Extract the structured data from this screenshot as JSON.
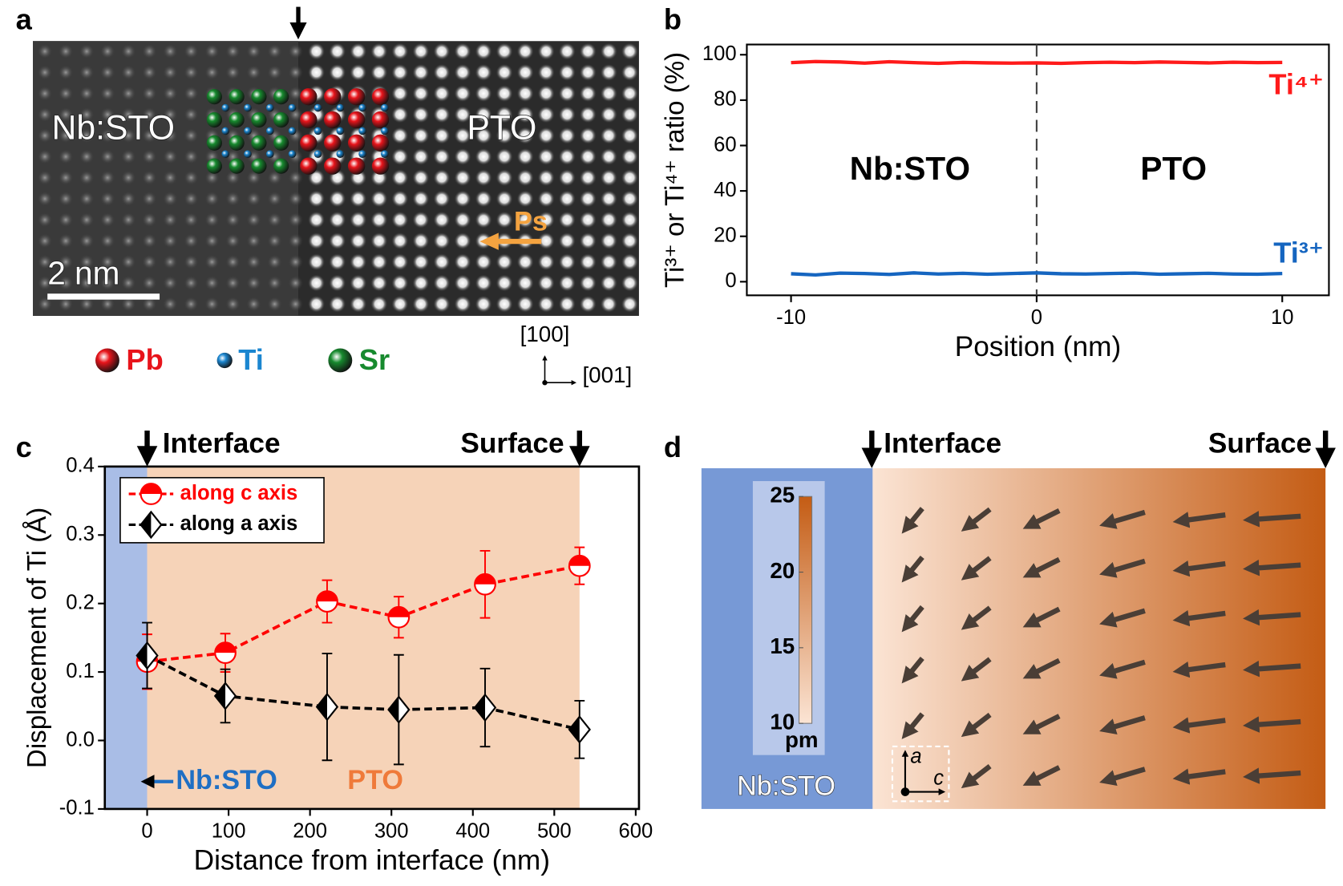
{
  "panel_labels": [
    "a",
    "b",
    "c",
    "d"
  ],
  "image": {
    "left_label": "Nb:STO",
    "right_label": "PTO",
    "polarization": "Ps",
    "scale_bar": "2 nm",
    "legend": [
      {
        "name": "Pb",
        "color": "#e8141b"
      },
      {
        "name": "Ti",
        "color": "#1b86d0"
      },
      {
        "name": "Sr",
        "color": "#178a2e"
      }
    ],
    "direction_vertical": "[100]",
    "direction_horizontal": "[001]"
  },
  "chart_data": [
    {
      "type": "line",
      "xlabel": "Position (nm)",
      "ylabel": "Ti³⁺ or Ti⁴⁺ ratio (%)",
      "xlim": [
        -11.8,
        11.9
      ],
      "ylim": [
        -6,
        104.5
      ],
      "xticks": [
        -10,
        0,
        10
      ],
      "yticks": [
        0,
        20,
        40,
        60,
        80,
        100
      ],
      "x": [
        -10,
        -9,
        -8,
        -7,
        -6,
        -5,
        -4,
        -3,
        -2,
        -1,
        0,
        1,
        2,
        3,
        4,
        5,
        6,
        7,
        8,
        9,
        10
      ],
      "series": [
        {
          "name": "Ti⁴⁺",
          "color": "#ff1a1a",
          "values": [
            96.5,
            97,
            96.8,
            96.3,
            96.9,
            96.5,
            96.2,
            96.6,
            96.4,
            96.3,
            96.4,
            96.2,
            96.5,
            96.7,
            96.5,
            96.8,
            96.6,
            96.4,
            96.7,
            96.5,
            96.6
          ]
        },
        {
          "name": "Ti³⁺",
          "color": "#1565c0",
          "values": [
            3.5,
            3.0,
            3.8,
            3.6,
            3.2,
            3.9,
            3.4,
            3.7,
            3.3,
            3.6,
            3.9,
            3.5,
            3.4,
            3.6,
            3.8,
            3.3,
            3.5,
            3.7,
            3.4,
            3.3,
            3.6
          ]
        }
      ],
      "annotations": [
        "Nb:STO",
        "PTO"
      ],
      "divider_x": 0
    },
    {
      "type": "errorline",
      "xlabel": "Distance from interface (nm)",
      "ylabel": "Displacement of Ti (Å)",
      "xlim": [
        -52,
        604
      ],
      "ylim": [
        -0.1,
        0.4
      ],
      "xticks": [
        0,
        100,
        200,
        300,
        400,
        500,
        600
      ],
      "yticks": [
        -0.1,
        {
          "value": 0,
          "label": "0.0"
        },
        0.1,
        0.2,
        0.3,
        0.4
      ],
      "x": [
        0,
        96,
        221,
        309,
        415,
        531
      ],
      "series": [
        {
          "name": "along c axis",
          "color": "#ff0000",
          "marker": "half-circle",
          "values": [
            0.115,
            0.128,
            0.203,
            0.18,
            0.228,
            0.255
          ],
          "errors": [
            0.04,
            0.028,
            0.031,
            0.03,
            0.049,
            0.027
          ]
        },
        {
          "name": "along a axis",
          "color": "#000000",
          "marker": "half-diamond",
          "values": [
            0.124,
            0.065,
            0.049,
            0.045,
            0.048,
            0.016
          ],
          "errors": [
            0.048,
            0.039,
            0.078,
            0.08,
            0.057,
            0.042
          ]
        }
      ],
      "regions": [
        {
          "from": -52,
          "to": 0,
          "color": "#a9bde6",
          "label": "Nb:STO",
          "label_color": "#1f6fc4"
        },
        {
          "from": 0,
          "to": 531,
          "color": "#f6d3b8",
          "label": "PTO",
          "label_color": "#ef7a3a"
        }
      ],
      "markers": [
        {
          "x": 0,
          "label": "Interface"
        },
        {
          "x": 531,
          "label": "Surface"
        }
      ]
    },
    {
      "type": "colorbar",
      "unit": "pm",
      "ylim": [
        10,
        25
      ],
      "yticks": [
        10,
        15,
        20,
        25
      ],
      "colors": [
        "#fbe4d4",
        "#c45c14"
      ],
      "markers": [
        {
          "label": "Interface"
        },
        {
          "label": "Surface"
        }
      ],
      "substrate_label": "Nb:STO",
      "axis_labels": [
        "a",
        "c"
      ]
    }
  ]
}
